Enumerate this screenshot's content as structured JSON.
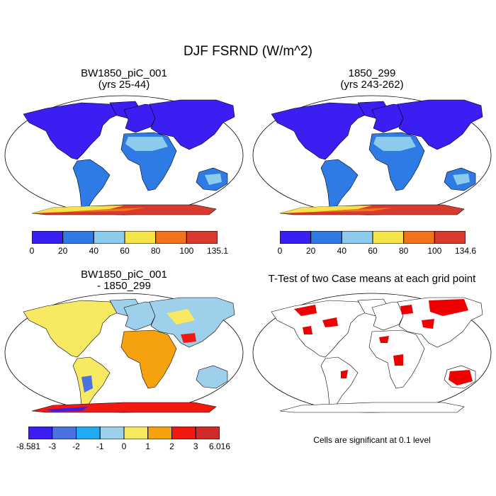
{
  "title": "DJF FSRND (W/m^2)",
  "panels": {
    "p1": {
      "title_line1": "BW1850_piC_001",
      "title_line2": "(yrs 25-44)"
    },
    "p2": {
      "title_line1": "1850_299",
      "title_line2": "(yrs 243-262)"
    },
    "p3": {
      "title_line1": "BW1850_piC_001",
      "title_line2": "- 1850_299"
    },
    "p4": {
      "title_line1": "T-Test of two Case means at each grid point",
      "note": "Cells are significant at 0.1 level"
    }
  },
  "colorbars": {
    "cb1": {
      "labels": [
        "0",
        "20",
        "40",
        "60",
        "80",
        "100",
        "135.1"
      ],
      "colors": [
        "#3a1ef2",
        "#2e7be6",
        "#8ccaee",
        "#f6e34a",
        "#f2731c",
        "#d83a2e"
      ]
    },
    "cb2": {
      "labels": [
        "0",
        "20",
        "40",
        "60",
        "80",
        "100",
        "134.6"
      ],
      "colors": [
        "#3a1ef2",
        "#2e7be6",
        "#8ccaee",
        "#f6e34a",
        "#f2731c",
        "#d83a2e"
      ]
    },
    "cb3": {
      "labels": [
        "-8.581",
        "-3",
        "-2",
        "-1",
        "0",
        "1",
        "2",
        "3",
        "6.016"
      ],
      "colors": [
        "#3a1ef2",
        "#4a72e2",
        "#22aaf2",
        "#9ed0ec",
        "#f7ea62",
        "#f6a20e",
        "#f21a10",
        "#d02a2a"
      ]
    }
  },
  "map_colors": {
    "ocean": "#ffffff",
    "land_low": "#3a1ef2",
    "land_mid": "#2e7be6",
    "desert": "#8ccaee",
    "antarctica_band1": "#f6e34a",
    "antarctica_band2": "#f2731c",
    "antarctica_band3": "#d83a2e",
    "diff_neutral": "#9ed0ec",
    "diff_pos": "#f7ea62",
    "diff_hot": "#f6a20e",
    "signif": "#ee0000"
  }
}
